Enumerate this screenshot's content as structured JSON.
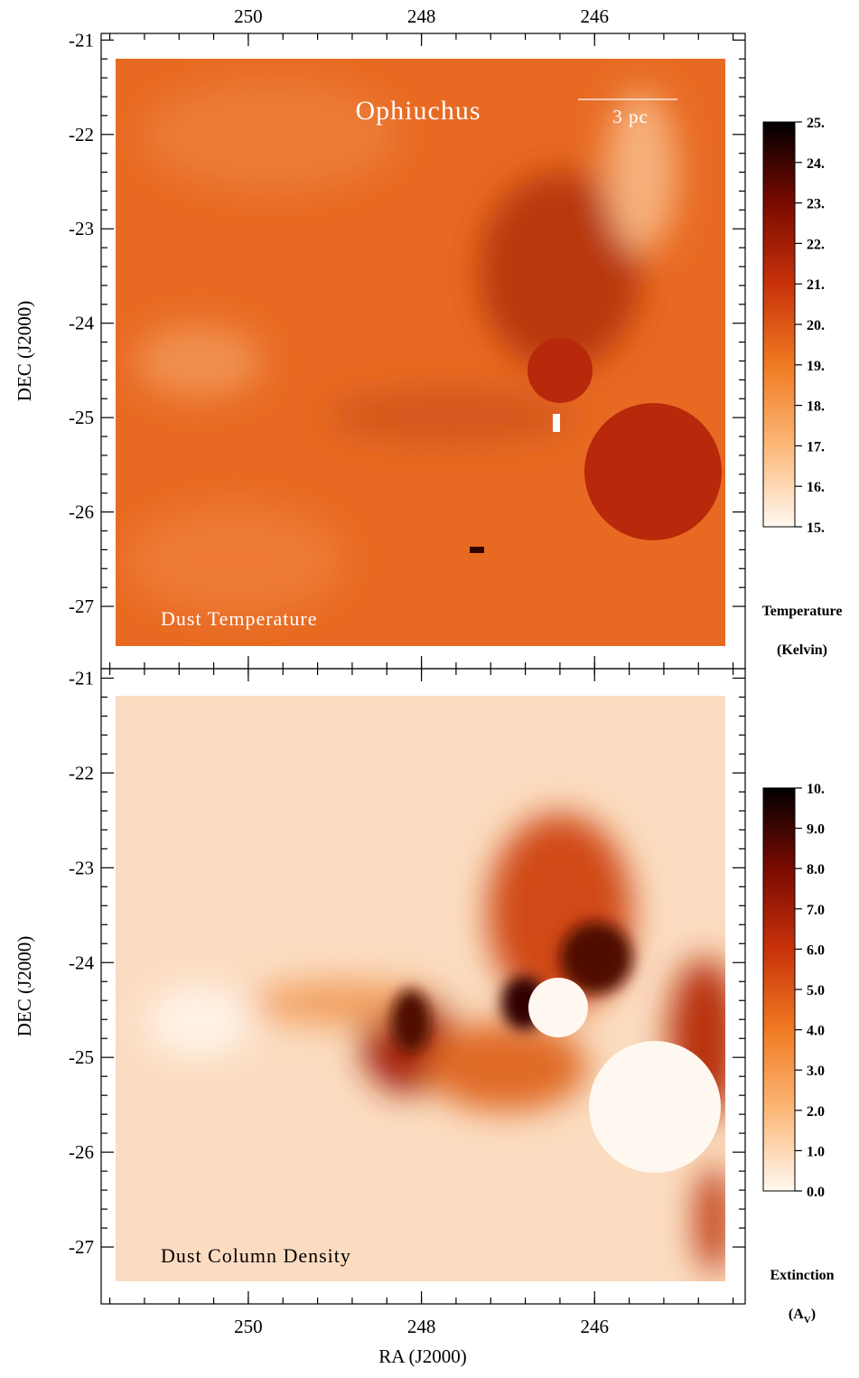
{
  "chart_data": [
    {
      "type": "image",
      "annotations": [
        "Ophiuchus",
        "3 pc",
        "Dust Temperature"
      ],
      "ylabel": "DEC (J2000)",
      "xlim": [
        251.7,
        244.26
      ],
      "xticks": [
        250,
        248,
        246
      ],
      "xtick_side": "top",
      "ylim": [
        -20.93,
        -27.66
      ],
      "yticks": [
        -21,
        -22,
        -23,
        -24,
        -25,
        -26,
        -27
      ],
      "colorbar": {
        "clim": [
          15,
          25
        ],
        "ticks": [
          {
            "value": 25,
            "label": "25."
          },
          {
            "value": 24,
            "label": "24."
          },
          {
            "value": 23,
            "label": "23."
          },
          {
            "value": 22,
            "label": "22."
          },
          {
            "value": 21,
            "label": "21."
          },
          {
            "value": 20,
            "label": "20."
          },
          {
            "value": 19,
            "label": "19."
          },
          {
            "value": 18,
            "label": "18."
          },
          {
            "value": 17,
            "label": "17."
          },
          {
            "value": 16,
            "label": "16."
          },
          {
            "value": 15,
            "label": "15."
          }
        ],
        "colormap": [
          "#fff8f0",
          "#fcb878",
          "#f07a22",
          "#c8320a",
          "#7a0a00",
          "#000000"
        ],
        "label": [
          "Temperature",
          "(Kelvin)"
        ]
      }
    },
    {
      "type": "image",
      "annotations": [
        "Dust Column Density"
      ],
      "ylabel": "DEC (J2000)",
      "xlabel": "RA (J2000)",
      "xlim": [
        251.7,
        244.26
      ],
      "xticks": [
        250,
        248,
        246
      ],
      "xtick_side": "bottom",
      "ylim": [
        -20.9,
        -27.6
      ],
      "yticks": [
        -21,
        -22,
        -23,
        -24,
        -25,
        -26,
        -27
      ],
      "colorbar": {
        "clim": [
          0,
          10
        ],
        "ticks": [
          {
            "value": 10,
            "label": "10."
          },
          {
            "value": 9,
            "label": "9.0"
          },
          {
            "value": 8,
            "label": "8.0"
          },
          {
            "value": 7,
            "label": "7.0"
          },
          {
            "value": 6,
            "label": "6.0"
          },
          {
            "value": 5,
            "label": "5.0"
          },
          {
            "value": 4,
            "label": "4.0"
          },
          {
            "value": 3,
            "label": "3.0"
          },
          {
            "value": 2,
            "label": "2.0"
          },
          {
            "value": 1,
            "label": "1.0"
          },
          {
            "value": 0,
            "label": "0.0"
          }
        ],
        "colormap": [
          "#fff8f0",
          "#fcb878",
          "#f07a22",
          "#c8320a",
          "#7a0a00",
          "#000000"
        ],
        "label": [
          "Extinction"
        ],
        "unit_parts": [
          "(A",
          "V",
          ")"
        ]
      }
    }
  ]
}
